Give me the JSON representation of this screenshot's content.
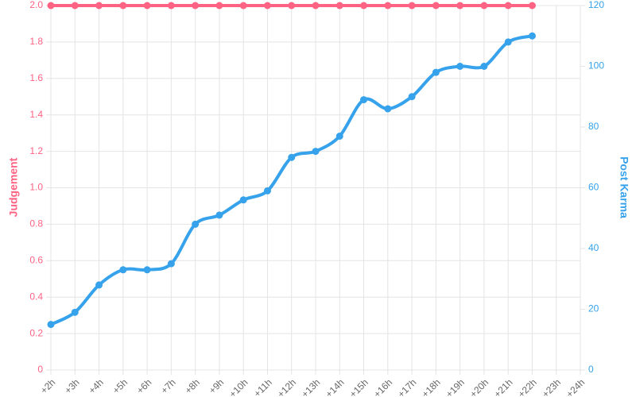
{
  "chart_data": {
    "type": "line",
    "categories": [
      "+2h",
      "+3h",
      "+4h",
      "+5h",
      "+6h",
      "+7h",
      "+8h",
      "+9h",
      "+10h",
      "+11h",
      "+12h",
      "+13h",
      "+14h",
      "+15h",
      "+16h",
      "+17h",
      "+18h",
      "+19h",
      "+20h",
      "+21h",
      "+22h",
      "+23h",
      "+24h"
    ],
    "series": [
      {
        "name": "Judgement",
        "color": "#ff6384",
        "axis": "y",
        "values": [
          2,
          2,
          2,
          2,
          2,
          2,
          2,
          2,
          2,
          2,
          2,
          2,
          2,
          2,
          2,
          2,
          2,
          2,
          2,
          2,
          2,
          null,
          null
        ]
      },
      {
        "name": "Post Karma",
        "color": "#36a2eb",
        "axis": "y2",
        "values": [
          15,
          19,
          28,
          33,
          33,
          35,
          48,
          51,
          56,
          59,
          70,
          72,
          77,
          89,
          86,
          90,
          98,
          100,
          100,
          108,
          110,
          null,
          null
        ]
      }
    ],
    "ylabel": "Judgement",
    "y2label": "Post Karma",
    "ylim": [
      0,
      2
    ],
    "yticks": [
      0,
      0.2,
      0.4,
      0.6,
      0.8,
      {
        "value": 1,
        "label": "1.0"
      },
      1.2,
      1.4,
      1.6,
      1.8,
      {
        "value": 2,
        "label": "2.0"
      }
    ],
    "y2lim": [
      0,
      120
    ],
    "y2ticks": [
      0,
      20,
      40,
      60,
      80,
      100,
      120
    ],
    "grid": true
  }
}
